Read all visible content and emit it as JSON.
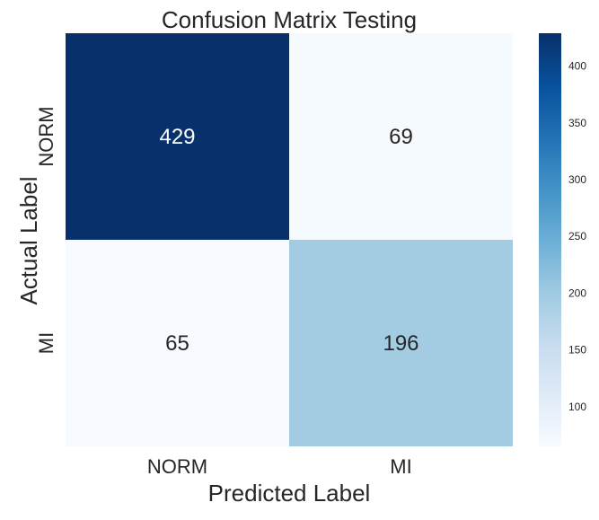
{
  "chart_data": {
    "type": "heatmap",
    "title": "Confusion Matrix Testing",
    "xlabel": "Predicted Label",
    "ylabel": "Actual Label",
    "x_categories": [
      "NORM",
      "MI"
    ],
    "y_categories": [
      "NORM",
      "MI"
    ],
    "values": [
      [
        429,
        69
      ],
      [
        65,
        196
      ]
    ],
    "colormap": "Blues",
    "colorbar": {
      "min": 65,
      "max": 429,
      "ticks": [
        100,
        150,
        200,
        250,
        300,
        350,
        400
      ],
      "tick_labels": [
        "100",
        "150",
        "200",
        "250",
        "300",
        "350",
        "400"
      ]
    },
    "grid": false,
    "colorbar_placement": "right"
  }
}
